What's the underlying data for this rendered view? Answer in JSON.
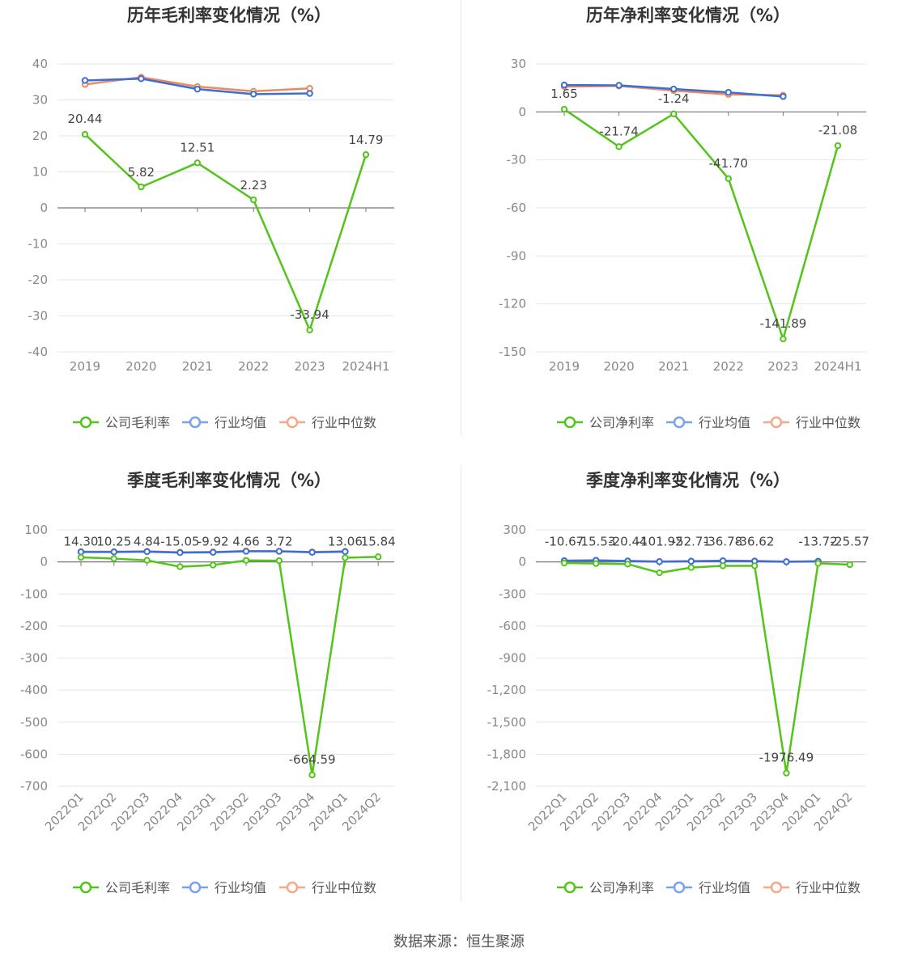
{
  "source": "数据来源：恒生聚源",
  "legend_labels": {
    "avg": "行业均值",
    "median": "行业中位数"
  },
  "colors": {
    "company": "#52c41a",
    "avg": "#3b6fd4",
    "median": "#f08a5d",
    "legend_avg": "#7aa0f0",
    "legend_median": "#f5a98a"
  },
  "chart_data": [
    {
      "type": "line",
      "title": "历年毛利率变化情况（%）",
      "categories": [
        "2019",
        "2020",
        "2021",
        "2022",
        "2023",
        "2024H1"
      ],
      "yticks": [
        "40",
        "30",
        "20",
        "10",
        "0",
        "-10",
        "-20",
        "-30",
        "-40"
      ],
      "ylim": [
        -40,
        40
      ],
      "series": [
        {
          "name": "公司毛利率",
          "key": "company",
          "values": [
            20.44,
            5.82,
            12.51,
            2.23,
            -33.94,
            14.79
          ],
          "labels": [
            "20.44",
            "5.82",
            "12.51",
            "2.23",
            "-33.94",
            "14.79"
          ]
        },
        {
          "name": "行业均值",
          "key": "avg",
          "values": [
            35.4,
            35.9,
            33.0,
            31.6,
            31.8,
            null
          ]
        },
        {
          "name": "行业中位数",
          "key": "median",
          "values": [
            34.3,
            36.3,
            33.7,
            32.4,
            33.2,
            null
          ]
        }
      ]
    },
    {
      "type": "line",
      "title": "历年净利率变化情况（%）",
      "categories": [
        "2019",
        "2020",
        "2021",
        "2022",
        "2023",
        "2024H1"
      ],
      "yticks": [
        "30",
        "0",
        "-30",
        "-60",
        "-90",
        "-120",
        "-150"
      ],
      "ylim": [
        -150,
        30
      ],
      "series": [
        {
          "name": "公司净利率",
          "key": "company",
          "values": [
            1.65,
            -21.74,
            -1.24,
            -41.7,
            -141.89,
            -21.08
          ],
          "labels": [
            "1.65",
            "-21.74",
            "-1.24",
            "-41.70",
            "-141.89",
            "-21.08"
          ]
        },
        {
          "name": "行业均值",
          "key": "avg",
          "values": [
            16.8,
            16.6,
            14.3,
            12.2,
            9.6,
            null
          ]
        },
        {
          "name": "行业中位数",
          "key": "median",
          "values": [
            15.8,
            16.2,
            13.3,
            10.9,
            10.4,
            null
          ]
        }
      ]
    },
    {
      "type": "line",
      "title": "季度毛利率变化情况（%）",
      "categories": [
        "2022Q1",
        "2022Q2",
        "2022Q3",
        "2022Q4",
        "2023Q1",
        "2023Q2",
        "2023Q3",
        "2023Q4",
        "2024Q1",
        "2024Q2"
      ],
      "yticks": [
        "100",
        "0",
        "-100",
        "-200",
        "-300",
        "-400",
        "-500",
        "-600",
        "-700"
      ],
      "ylim": [
        -700,
        100
      ],
      "series": [
        {
          "name": "公司毛利率",
          "key": "company",
          "values": [
            14.3,
            10.25,
            4.84,
            -15.05,
            -9.92,
            4.66,
            3.72,
            -664.59,
            13.06,
            15.84
          ],
          "labels": [
            "14.30",
            "10.25",
            "4.84",
            "-15.05",
            "-9.92",
            "4.66",
            "3.72",
            "-664.59",
            "13.06",
            "15.84"
          ]
        },
        {
          "name": "行业均值",
          "key": "avg",
          "values": [
            31,
            31,
            32,
            29,
            30,
            33,
            33,
            30,
            32,
            null
          ]
        },
        {
          "name": "行业中位数",
          "key": "median",
          "values": [
            32,
            32,
            33,
            30,
            31,
            34,
            33,
            31,
            33,
            null
          ]
        }
      ]
    },
    {
      "type": "line",
      "title": "季度净利率变化情况（%）",
      "categories": [
        "2022Q1",
        "2022Q2",
        "2022Q3",
        "2022Q4",
        "2023Q1",
        "2023Q2",
        "2023Q3",
        "2023Q4",
        "2024Q1",
        "2024Q2"
      ],
      "yticks": [
        "300",
        "0",
        "-300",
        "-600",
        "-900",
        "-1,200",
        "-1,500",
        "-1,800",
        "-2,100"
      ],
      "ylim": [
        -2100,
        300
      ],
      "series": [
        {
          "name": "公司净利率",
          "key": "company",
          "values": [
            -10.67,
            -15.53,
            -20.44,
            -101.92,
            -52.71,
            -36.78,
            -36.62,
            -1976.49,
            -13.72,
            -25.57
          ],
          "labels": [
            "-10.67",
            "-15.53",
            "-20.44",
            "-101.92",
            "-52.71",
            "-36.78",
            "-36.62",
            "-1976.49",
            "-13.72",
            "-25.57"
          ]
        },
        {
          "name": "行业均值",
          "key": "avg",
          "values": [
            10,
            14,
            8,
            2,
            6,
            10,
            7,
            1,
            5,
            null
          ]
        },
        {
          "name": "行业中位数",
          "key": "median",
          "values": [
            12,
            15,
            10,
            4,
            8,
            12,
            9,
            3,
            7,
            null
          ]
        }
      ]
    }
  ]
}
